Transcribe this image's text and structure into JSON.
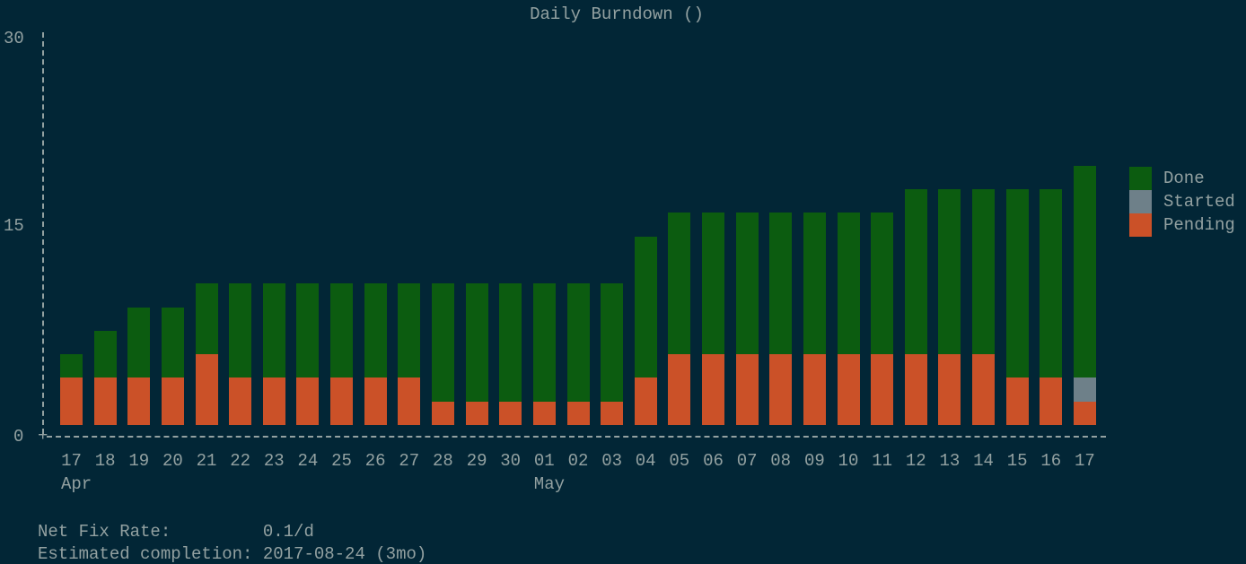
{
  "chart_data": {
    "type": "bar",
    "stacked": true,
    "title": "Daily Burndown ()",
    "yticks": [
      "0",
      "15",
      "30"
    ],
    "ylim": [
      0,
      30
    ],
    "categories": [
      "17",
      "18",
      "19",
      "20",
      "21",
      "22",
      "23",
      "24",
      "25",
      "26",
      "27",
      "28",
      "29",
      "30",
      "01",
      "02",
      "03",
      "04",
      "05",
      "06",
      "07",
      "08",
      "09",
      "10",
      "11",
      "12",
      "13",
      "14",
      "15",
      "16",
      "17"
    ],
    "month_labels": [
      {
        "label": "Apr",
        "index": 0
      },
      {
        "label": "May",
        "index": 14
      }
    ],
    "series": [
      {
        "name": "Pending",
        "color": "#cb5128",
        "values": [
          4,
          4,
          4,
          4,
          6,
          4,
          4,
          4,
          4,
          4,
          4,
          2,
          2,
          2,
          2,
          2,
          2,
          4,
          6,
          6,
          6,
          6,
          6,
          6,
          6,
          6,
          6,
          6,
          4,
          4,
          2
        ]
      },
      {
        "name": "Started",
        "color": "#6e8089",
        "values": [
          0,
          0,
          0,
          0,
          0,
          0,
          0,
          0,
          0,
          0,
          0,
          0,
          0,
          0,
          0,
          0,
          0,
          0,
          0,
          0,
          0,
          0,
          0,
          0,
          0,
          0,
          0,
          0,
          0,
          0,
          2
        ]
      },
      {
        "name": "Done",
        "color": "#0c5c10",
        "values": [
          2,
          4,
          6,
          6,
          6,
          8,
          8,
          8,
          8,
          8,
          8,
          10,
          10,
          10,
          10,
          10,
          10,
          12,
          12,
          12,
          12,
          12,
          12,
          12,
          12,
          14,
          14,
          14,
          16,
          16,
          18
        ]
      }
    ],
    "legend": [
      "Done",
      "Started",
      "Pending"
    ],
    "legend_placement": "right",
    "grid": false
  },
  "stats": [
    {
      "label": "Net Fix Rate:         ",
      "value": "0.1/d"
    },
    {
      "label": "Estimated completion: ",
      "value": "2017-08-24 (3mo)"
    }
  ],
  "axis": {
    "origin": "+"
  }
}
